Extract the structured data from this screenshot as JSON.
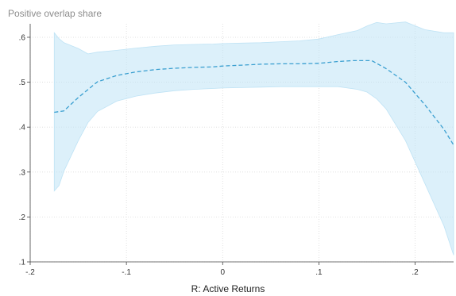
{
  "chart_data": {
    "type": "line",
    "title": "Positive overlap share",
    "xlabel": "R: Active Returns",
    "ylabel": "",
    "xlim": [
      -0.2,
      0.24
    ],
    "ylim": [
      0.1,
      0.63
    ],
    "xticks": [
      {
        "value": -0.2,
        "label": "-.2"
      },
      {
        "value": -0.1,
        "label": "-.1"
      },
      {
        "value": 0,
        "label": "0"
      },
      {
        "value": 0.1,
        "label": ".1"
      },
      {
        "value": 0.2,
        "label": ".2"
      }
    ],
    "yticks": [
      {
        "value": 0.1,
        "label": ".1"
      },
      {
        "value": 0.2,
        "label": ".2"
      },
      {
        "value": 0.3,
        "label": ".3"
      },
      {
        "value": 0.4,
        "label": ".4"
      },
      {
        "value": 0.5,
        "label": ".5"
      },
      {
        "value": 0.6,
        "label": ".6"
      }
    ],
    "grid": true,
    "series": [
      {
        "style": "dashed",
        "color": "#3a9fd0",
        "x": [
          -0.175,
          -0.165,
          -0.15,
          -0.13,
          -0.11,
          -0.09,
          -0.07,
          -0.05,
          -0.03,
          -0.01,
          0,
          0.02,
          0.04,
          0.06,
          0.08,
          0.1,
          0.12,
          0.135,
          0.155,
          0.17,
          0.19,
          0.21,
          0.23,
          0.24
        ],
        "y": [
          0.433,
          0.436,
          0.466,
          0.501,
          0.515,
          0.523,
          0.528,
          0.531,
          0.533,
          0.534,
          0.536,
          0.538,
          0.54,
          0.541,
          0.541,
          0.542,
          0.546,
          0.548,
          0.548,
          0.53,
          0.5,
          0.45,
          0.395,
          0.36
        ]
      }
    ],
    "band": {
      "color": "#bfe3f5",
      "x": [
        -0.175,
        -0.17,
        -0.165,
        -0.15,
        -0.14,
        -0.13,
        -0.11,
        -0.09,
        -0.07,
        -0.05,
        -0.03,
        -0.01,
        0,
        0.02,
        0.04,
        0.06,
        0.08,
        0.1,
        0.12,
        0.14,
        0.15,
        0.16,
        0.17,
        0.19,
        0.21,
        0.23,
        0.24
      ],
      "upper": [
        0.61,
        0.597,
        0.588,
        0.575,
        0.563,
        0.567,
        0.571,
        0.576,
        0.58,
        0.583,
        0.584,
        0.585,
        0.586,
        0.587,
        0.588,
        0.59,
        0.592,
        0.596,
        0.606,
        0.615,
        0.625,
        0.633,
        0.63,
        0.634,
        0.617,
        0.61,
        0.61
      ],
      "lower": [
        0.258,
        0.27,
        0.302,
        0.37,
        0.41,
        0.435,
        0.458,
        0.469,
        0.476,
        0.481,
        0.484,
        0.486,
        0.487,
        0.488,
        0.489,
        0.49,
        0.49,
        0.49,
        0.49,
        0.484,
        0.478,
        0.463,
        0.44,
        0.37,
        0.275,
        0.18,
        0.115
      ]
    }
  }
}
